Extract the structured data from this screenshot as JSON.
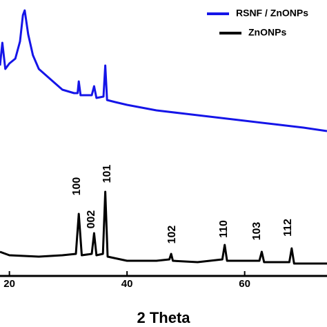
{
  "chart_data": {
    "type": "line",
    "x_label": "2 Theta",
    "xlim": [
      18.4,
      74
    ],
    "xticks": [
      20,
      40,
      60
    ],
    "ylim": [
      0,
      100
    ],
    "legend": "top-right",
    "series": [
      {
        "name": "RSNF / ZnONPs",
        "color": "#1515e8",
        "x": [
          18.4,
          18.8,
          19.3,
          20,
          21,
          21.8,
          22.3,
          22.6,
          23.2,
          24,
          25,
          27,
          29,
          31,
          31.6,
          31.8,
          32.1,
          34,
          34.4,
          34.8,
          36,
          36.3,
          36.6,
          38,
          40,
          45,
          50,
          55,
          60,
          65,
          70,
          74
        ],
        "values": [
          76.25,
          84.5,
          75,
          77,
          78.75,
          85,
          94.5,
          96.25,
          87.5,
          80,
          75,
          71.25,
          67.5,
          66.25,
          66.25,
          70.5,
          65.5,
          65.5,
          68.75,
          64.5,
          65,
          76.25,
          63.75,
          63,
          62,
          60,
          58.75,
          57.5,
          56.25,
          55,
          53.75,
          52.5
        ]
      },
      {
        "name": "ZnONPs",
        "color": "#000000",
        "x": [
          18.4,
          20,
          25,
          29,
          31.3,
          31.8,
          32.3,
          34,
          34.4,
          34.8,
          35.9,
          36.3,
          36.7,
          40,
          45,
          47.2,
          47.5,
          47.8,
          52,
          56.2,
          56.6,
          57,
          62.5,
          62.9,
          63.3,
          67.6,
          68,
          68.4,
          74
        ],
        "values": [
          8.75,
          7.5,
          7,
          7.5,
          8,
          22.5,
          7.5,
          8,
          15.5,
          7.5,
          8,
          30.5,
          7,
          5.5,
          5.5,
          6,
          8,
          5.5,
          5,
          6,
          11.25,
          5.5,
          5.5,
          8.75,
          5,
          5,
          10,
          4.5,
          4.5
        ]
      }
    ],
    "annotations": [
      "100",
      "002",
      "101",
      "102",
      "110",
      "103",
      "112"
    ]
  }
}
